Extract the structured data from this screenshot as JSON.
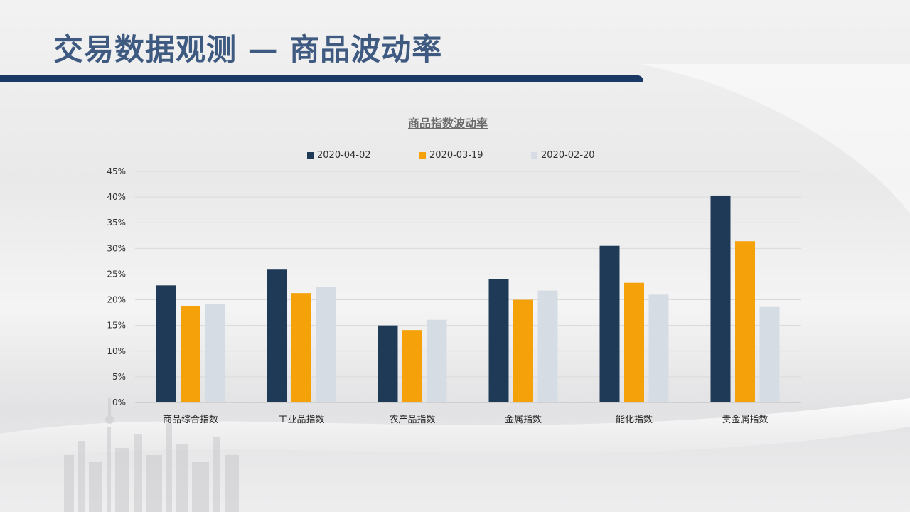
{
  "slide": {
    "title": "交易数据观测 — 商品波动率"
  },
  "colors": {
    "title_text": "#3f5a80",
    "title_bar": "#1b3764"
  },
  "chart_data": {
    "type": "bar",
    "title": "商品指数波动率",
    "categories": [
      "商品综合指数",
      "工业品指数",
      "农产品指数",
      "金属指数",
      "能化指数",
      "贵金属指数"
    ],
    "series": [
      {
        "name": "2020-04-02",
        "color": "#1f3a56",
        "values": [
          22.8,
          26.0,
          15.0,
          24.0,
          30.5,
          40.3
        ]
      },
      {
        "name": "2020-03-19",
        "color": "#f5a20a",
        "values": [
          18.7,
          21.3,
          14.1,
          20.0,
          23.3,
          31.4
        ]
      },
      {
        "name": "2020-02-20",
        "color": "#d6dce4",
        "values": [
          19.2,
          22.5,
          16.1,
          21.8,
          21.0,
          18.6
        ]
      }
    ],
    "ylim": [
      0,
      45
    ],
    "yticks": [
      "0%",
      "5%",
      "10%",
      "15%",
      "20%",
      "25%",
      "30%",
      "35%",
      "40%",
      "45%"
    ],
    "grid": true,
    "legend": "top"
  }
}
